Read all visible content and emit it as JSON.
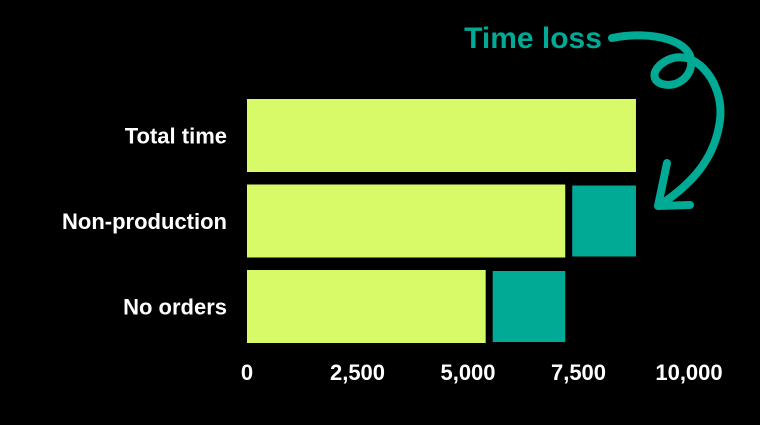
{
  "chart_data": {
    "type": "bar",
    "orientation": "horizontal",
    "stacked": true,
    "categories": [
      "Total time",
      "Non-production",
      "No orders"
    ],
    "series": [
      {
        "values": [
          8800,
          7200,
          5400
        ],
        "color": "#d8f968"
      },
      {
        "values": [
          0,
          1600,
          1800
        ],
        "color": "#00aa95"
      }
    ],
    "xlim": [
      0,
      10000
    ],
    "xticks": [
      0,
      2500,
      5000,
      7500,
      10000
    ],
    "xtick_labels": [
      "0",
      "2,500",
      "5,000",
      "7,500",
      "10,000"
    ],
    "grid": false,
    "annotation": {
      "text": "Time loss",
      "color": "#00aa95",
      "points_to": "Non-production"
    },
    "background": "#000000"
  }
}
